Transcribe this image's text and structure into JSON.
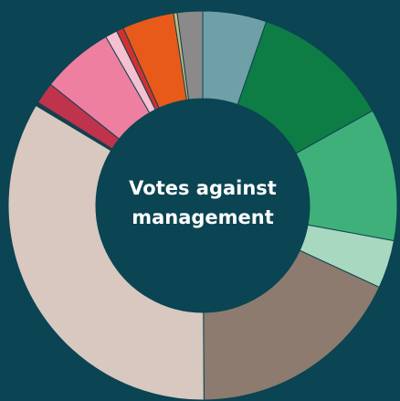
{
  "chart_data": {
    "type": "donut",
    "title": "Votes against management",
    "values": [
      5.3,
      11.6,
      11,
      4,
      18,
      33.7,
      0.3,
      1.8,
      6,
      1,
      0.6,
      4.3,
      0.3,
      2.1
    ],
    "colors": [
      "#6fa0a8",
      "#0e7c45",
      "#3fb07a",
      "#a8d8c0",
      "#8c7b6e",
      "#d8c8bf",
      "#1c3c4a",
      "#c0334d",
      "#ee7fa0",
      "#f6c0d0",
      "#d03030",
      "#e85a1a",
      "#c8b878",
      "#8a8a8a"
    ]
  }
}
